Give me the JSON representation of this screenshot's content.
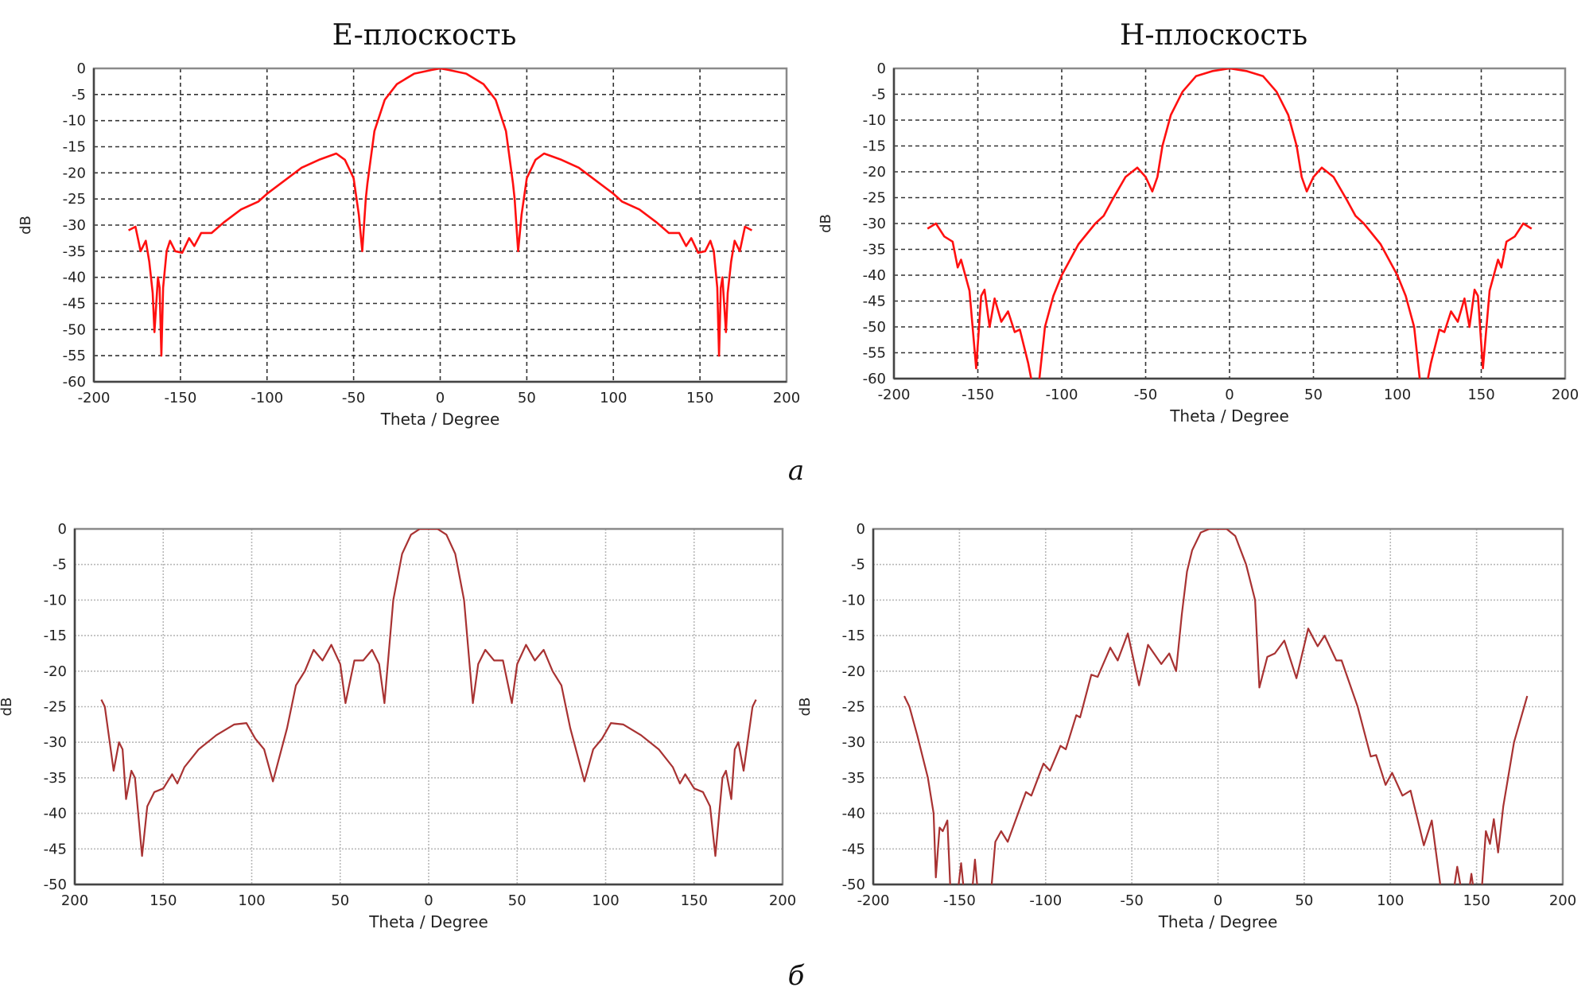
{
  "subfigure_labels": [
    "а",
    "б"
  ],
  "chart_data": [
    {
      "type": "line",
      "title": "E-плоскость",
      "xlabel": "Theta / Degree",
      "ylabel": "dB",
      "xlim": [
        -200,
        200
      ],
      "ylim": [
        -60,
        0
      ],
      "xticks": [
        -200,
        -150,
        -100,
        -50,
        0,
        50,
        100,
        150,
        200
      ],
      "xtick_labels": [
        "-200",
        "-150",
        "-100",
        "-50",
        "0",
        "50",
        "100",
        "150",
        "200"
      ],
      "yticks": [
        0,
        -5,
        -10,
        -15,
        -20,
        -25,
        -30,
        -35,
        -40,
        -45,
        -50,
        -55,
        -60
      ],
      "ytick_labels": [
        "0",
        "-5",
        "-10",
        "-15",
        "-20",
        "-25",
        "-30",
        "-35",
        "-40",
        "-45",
        "-50",
        "-55",
        "-60"
      ],
      "grid": true,
      "color": "#ff1010",
      "symmetric": true,
      "half_points": [
        [
          -180,
          -31
        ],
        [
          -176,
          -30.3
        ],
        [
          -173,
          -35
        ],
        [
          -170,
          -33
        ],
        [
          -168,
          -37
        ],
        [
          -166,
          -43
        ],
        [
          -165,
          -50.5
        ],
        [
          -163,
          -40
        ],
        [
          -162,
          -42
        ],
        [
          -161,
          -55
        ],
        [
          -160,
          -42
        ],
        [
          -158,
          -35
        ],
        [
          -156,
          -33
        ],
        [
          -153,
          -35
        ],
        [
          -149,
          -35.3
        ],
        [
          -145,
          -32.5
        ],
        [
          -142,
          -34
        ],
        [
          -138,
          -31.5
        ],
        [
          -132,
          -31.5
        ],
        [
          -125,
          -29.5
        ],
        [
          -115,
          -27
        ],
        [
          -105,
          -25.5
        ],
        [
          -100,
          -24
        ],
        [
          -80,
          -19
        ],
        [
          -70,
          -17.5
        ],
        [
          -60,
          -16.3
        ],
        [
          -55,
          -17.5
        ],
        [
          -50,
          -21
        ],
        [
          -47,
          -28
        ],
        [
          -45,
          -35
        ],
        [
          -43,
          -25
        ],
        [
          -42,
          -22
        ],
        [
          -38,
          -12
        ],
        [
          -32,
          -6
        ],
        [
          -25,
          -3
        ],
        [
          -15,
          -1
        ],
        [
          -5,
          -0.3
        ],
        [
          0,
          0
        ]
      ]
    },
    {
      "type": "line",
      "title": "H-плоскость",
      "xlabel": "Theta / Degree",
      "ylabel": "dB",
      "xlim": [
        -200,
        200
      ],
      "ylim": [
        -60,
        0
      ],
      "xticks": [
        -200,
        -150,
        -100,
        -50,
        0,
        50,
        100,
        150,
        200
      ],
      "xtick_labels": [
        "-200",
        "-150",
        "-100",
        "-50",
        "0",
        "50",
        "100",
        "150",
        "200"
      ],
      "yticks": [
        0,
        -5,
        -10,
        -15,
        -20,
        -25,
        -30,
        -35,
        -40,
        -45,
        -50,
        -55,
        -60
      ],
      "ytick_labels": [
        "0",
        "-5",
        "-10",
        "-15",
        "-20",
        "-25",
        "-30",
        "-35",
        "-40",
        "-45",
        "-50",
        "-55",
        "-60"
      ],
      "grid": true,
      "color": "#ff1010",
      "symmetric": true,
      "half_points": [
        [
          -180,
          -31
        ],
        [
          -175,
          -30
        ],
        [
          -170,
          -32.5
        ],
        [
          -165,
          -33.5
        ],
        [
          -162,
          -38.5
        ],
        [
          -160,
          -37
        ],
        [
          -155,
          -43
        ],
        [
          -151,
          -58
        ],
        [
          -148,
          -44
        ],
        [
          -146,
          -42.8
        ],
        [
          -143,
          -50
        ],
        [
          -140,
          -44.5
        ],
        [
          -136,
          -49
        ],
        [
          -132,
          -47
        ],
        [
          -128,
          -51
        ],
        [
          -125,
          -50.5
        ],
        [
          -120,
          -57
        ],
        [
          -117,
          -62
        ],
        [
          -114,
          -62
        ],
        [
          -110,
          -50
        ],
        [
          -105,
          -44
        ],
        [
          -100,
          -40
        ],
        [
          -90,
          -34
        ],
        [
          -80,
          -30
        ],
        [
          -75,
          -28.5
        ],
        [
          -70,
          -25.5
        ],
        [
          -62,
          -21
        ],
        [
          -55,
          -19.2
        ],
        [
          -50,
          -21
        ],
        [
          -46,
          -23.8
        ],
        [
          -43,
          -21
        ],
        [
          -40,
          -15
        ],
        [
          -35,
          -9
        ],
        [
          -28,
          -4.5
        ],
        [
          -20,
          -1.5
        ],
        [
          -10,
          -0.5
        ],
        [
          0,
          0
        ]
      ]
    },
    {
      "type": "line",
      "title": "",
      "xlabel": "Theta / Degree",
      "ylabel": "dB",
      "xlim": [
        -200,
        200
      ],
      "ylim": [
        -50,
        0
      ],
      "xticks": [
        -200,
        -150,
        -100,
        -50,
        0,
        50,
        100,
        150,
        200
      ],
      "xtick_labels": [
        "200",
        "150",
        "100",
        "50",
        "0",
        "50",
        "100",
        "150",
        "200"
      ],
      "yticks": [
        0,
        -5,
        -10,
        -15,
        -20,
        -25,
        -30,
        -35,
        -40,
        -45,
        -50
      ],
      "ytick_labels": [
        "0",
        "-5",
        "-10",
        "-15",
        "-20",
        "-25",
        "-30",
        "-35",
        "-40",
        "-45",
        "-50"
      ],
      "grid": true,
      "color": "#a83232",
      "symmetric": true,
      "half_points": [
        [
          -185,
          -24
        ],
        [
          -183,
          -25
        ],
        [
          -178,
          -34
        ],
        [
          -175,
          -30
        ],
        [
          -173,
          -31
        ],
        [
          -171,
          -38
        ],
        [
          -168,
          -34
        ],
        [
          -166,
          -35
        ],
        [
          -162,
          -46
        ],
        [
          -159,
          -39
        ],
        [
          -155,
          -37
        ],
        [
          -150,
          -36.5
        ],
        [
          -145,
          -34.5
        ],
        [
          -142,
          -35.8
        ],
        [
          -138,
          -33.5
        ],
        [
          -130,
          -31
        ],
        [
          -120,
          -29
        ],
        [
          -110,
          -27.5
        ],
        [
          -103,
          -27.3
        ],
        [
          -98,
          -29.5
        ],
        [
          -93,
          -31
        ],
        [
          -88,
          -35.5
        ],
        [
          -80,
          -28
        ],
        [
          -75,
          -22
        ],
        [
          -70,
          -20
        ],
        [
          -65,
          -17
        ],
        [
          -60,
          -18.5
        ],
        [
          -55,
          -16.3
        ],
        [
          -50,
          -19
        ],
        [
          -47,
          -24.5
        ],
        [
          -42,
          -18.5
        ],
        [
          -37,
          -18.5
        ],
        [
          -32,
          -17
        ],
        [
          -28,
          -19
        ],
        [
          -25,
          -24.5
        ],
        [
          -20,
          -10
        ],
        [
          -15,
          -3.5
        ],
        [
          -10,
          -0.8
        ],
        [
          -5,
          0
        ],
        [
          0,
          0
        ]
      ]
    },
    {
      "type": "line",
      "title": "",
      "xlabel": "Theta / Degree",
      "ylabel": "dB",
      "xlim": [
        -200,
        200
      ],
      "ylim": [
        -50,
        0
      ],
      "xticks": [
        -200,
        -150,
        -100,
        -50,
        0,
        50,
        100,
        150,
        200
      ],
      "xtick_labels": [
        "-200",
        "-150",
        "-100",
        "-50",
        "0",
        "50",
        "100",
        "150",
        "200"
      ],
      "yticks": [
        0,
        -5,
        -10,
        -15,
        -20,
        -25,
        -30,
        -35,
        -40,
        -45,
        -50
      ],
      "ytick_labels": [
        "0",
        "-5",
        "-10",
        "-15",
        "-20",
        "-25",
        "-30",
        "-35",
        "-40",
        "-45",
        "-50"
      ],
      "grid": true,
      "color": "#a83232",
      "symmetric": false,
      "points": [
        [
          -182,
          -23.5
        ],
        [
          -179,
          -25
        ],
        [
          -174.5,
          -29
        ],
        [
          -168.3,
          -35
        ],
        [
          -165,
          -40
        ],
        [
          -163.7,
          -49
        ],
        [
          -161.5,
          -42
        ],
        [
          -159.7,
          -42.5
        ],
        [
          -157,
          -41
        ],
        [
          -155,
          -52
        ],
        [
          -151.4,
          -52
        ],
        [
          -149,
          -47
        ],
        [
          -147,
          -52
        ],
        [
          -143,
          -52
        ],
        [
          -141,
          -46.5
        ],
        [
          -139,
          -52
        ],
        [
          -132,
          -52
        ],
        [
          -129.2,
          -44
        ],
        [
          -125.8,
          -42.5
        ],
        [
          -122,
          -44
        ],
        [
          -116,
          -40
        ],
        [
          -111.4,
          -37
        ],
        [
          -108.3,
          -37.5
        ],
        [
          -101.2,
          -33
        ],
        [
          -97.5,
          -34
        ],
        [
          -91.4,
          -30.5
        ],
        [
          -88.3,
          -31
        ],
        [
          -82.2,
          -26.2
        ],
        [
          -80,
          -26.5
        ],
        [
          -73.5,
          -20.5
        ],
        [
          -69.8,
          -20.8
        ],
        [
          -62.5,
          -16.7
        ],
        [
          -58.2,
          -18.5
        ],
        [
          -52.3,
          -14.7
        ],
        [
          -45.8,
          -22
        ],
        [
          -40.6,
          -16.3
        ],
        [
          -32.9,
          -19
        ],
        [
          -28.3,
          -17.5
        ],
        [
          -24.3,
          -20
        ],
        [
          -21,
          -12
        ],
        [
          -18,
          -6
        ],
        [
          -15,
          -3
        ],
        [
          -10,
          -0.5
        ],
        [
          -5,
          0
        ],
        [
          5,
          0
        ],
        [
          10,
          -1
        ],
        [
          16.3,
          -5
        ],
        [
          21.5,
          -10
        ],
        [
          24,
          -22.3
        ],
        [
          28.6,
          -18
        ],
        [
          33,
          -17.5
        ],
        [
          38.5,
          -15.7
        ],
        [
          45.5,
          -21
        ],
        [
          52.3,
          -14
        ],
        [
          57.8,
          -16.5
        ],
        [
          61.8,
          -15
        ],
        [
          68.6,
          -18.5
        ],
        [
          71.7,
          -18.5
        ],
        [
          81,
          -25
        ],
        [
          88.6,
          -32
        ],
        [
          91.7,
          -31.8
        ],
        [
          97.2,
          -36
        ],
        [
          101,
          -34.3
        ],
        [
          107,
          -37.5
        ],
        [
          111.7,
          -36.8
        ],
        [
          119.4,
          -44.5
        ],
        [
          124,
          -41
        ],
        [
          130,
          -52
        ],
        [
          136,
          -52
        ],
        [
          138.8,
          -47.5
        ],
        [
          142,
          -52
        ],
        [
          145,
          -52
        ],
        [
          147,
          -48.5
        ],
        [
          149,
          -52
        ],
        [
          152.6,
          -52
        ],
        [
          155.4,
          -42.5
        ],
        [
          157.8,
          -44.3
        ],
        [
          160,
          -40.8
        ],
        [
          162.5,
          -45.5
        ],
        [
          165.5,
          -39
        ],
        [
          171.7,
          -30
        ],
        [
          179.4,
          -23.5
        ]
      ]
    }
  ]
}
